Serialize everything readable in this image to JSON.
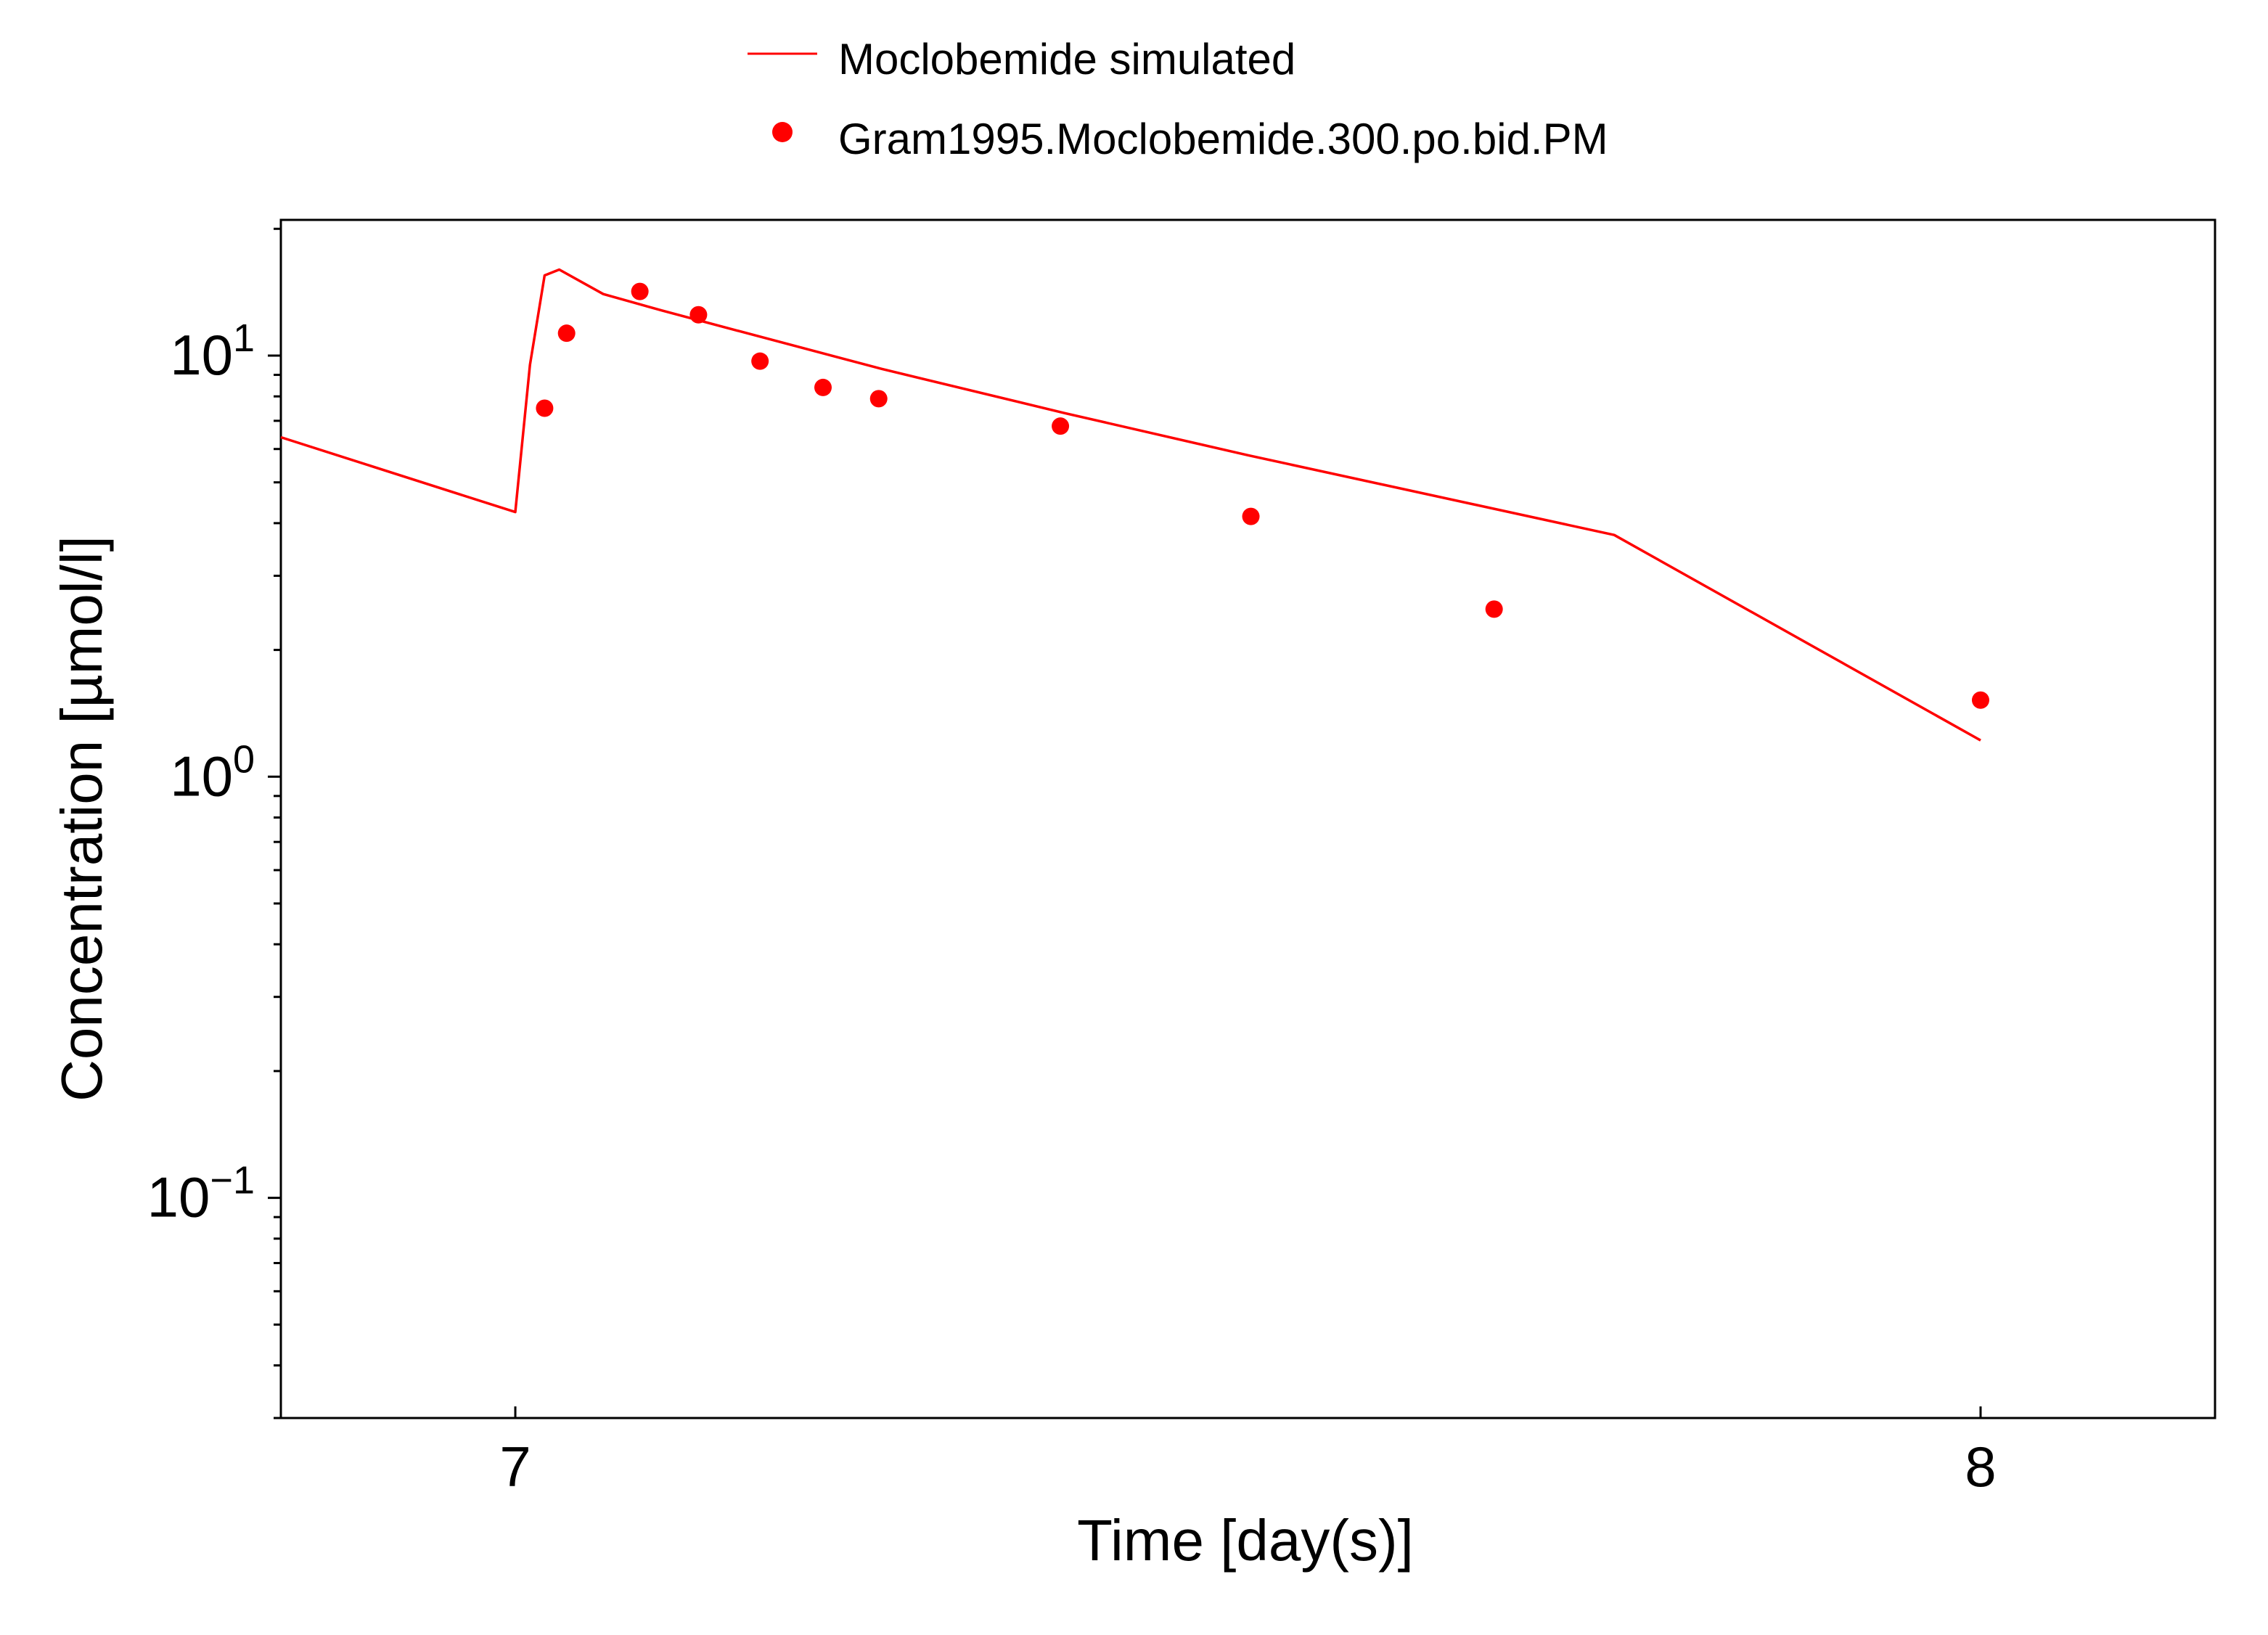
{
  "chart_data": {
    "type": "line",
    "title": "",
    "xlabel": "Time [day(s)]",
    "ylabel": "Concentration [µmol/l]",
    "xlim": [
      6.84,
      8.16
    ],
    "ylim": [
      0.03,
      21
    ],
    "yscale": "log",
    "grid": false,
    "legend_position": "top-center",
    "x_ticks": [
      7,
      8
    ],
    "x_tick_labels": [
      "7",
      "8"
    ],
    "y_ticks": [
      {
        "value": 0.1,
        "base": "10",
        "exp": "−1"
      },
      {
        "value": 1,
        "base": "10",
        "exp": "0"
      },
      {
        "value": 10,
        "base": "10",
        "exp": "1"
      }
    ],
    "series": [
      {
        "name": "Moclobemide simulated",
        "kind": "line",
        "color": "#ff0000",
        "x": [
          6.84,
          7.0,
          7.01,
          7.02,
          7.03,
          7.06,
          7.1,
          7.15,
          7.25,
          7.375,
          7.5,
          7.75,
          8.0
        ],
        "y": [
          6.4,
          4.25,
          9.5,
          15.5,
          16.0,
          14.0,
          12.8,
          11.5,
          9.3,
          7.3,
          5.8,
          3.75,
          1.22
        ]
      },
      {
        "name": "Gram1995.Moclobemide.300.po.bid.PM",
        "kind": "scatter",
        "color": "#ff0000",
        "x": [
          7.02,
          7.035,
          7.085,
          7.125,
          7.167,
          7.21,
          7.248,
          7.372,
          7.502,
          7.668,
          8.0
        ],
        "y": [
          7.5,
          11.3,
          14.2,
          12.5,
          9.7,
          8.4,
          7.9,
          6.8,
          4.15,
          2.5,
          1.52
        ]
      }
    ]
  }
}
